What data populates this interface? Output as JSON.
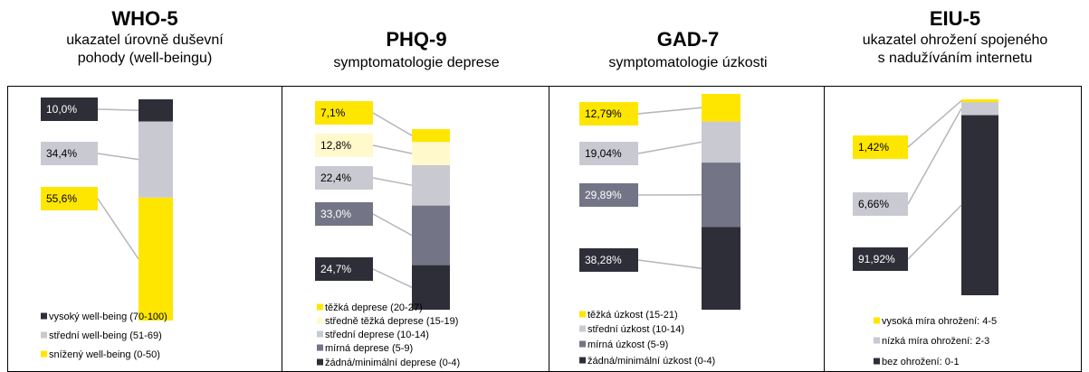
{
  "chart_data": [
    {
      "type": "bar",
      "stacked": true,
      "title": "WHO-5",
      "subtitle": [
        "ukazatel úrovně duševní",
        "pohody (well-beingu)"
      ],
      "series": [
        {
          "name": "vysoký well-being (70-100)",
          "color": "#2e2e38",
          "values": [
            10.0
          ],
          "value_labels": [
            "10,0%"
          ]
        },
        {
          "name": "střední well-being (51-69)",
          "color": "#c9c9d1",
          "values": [
            34.4
          ],
          "value_labels": [
            "34,4%"
          ]
        },
        {
          "name": "snížený well-being (0-50)",
          "color": "#ffe600",
          "values": [
            55.6
          ],
          "value_labels": [
            "55,6%"
          ]
        }
      ]
    },
    {
      "type": "bar",
      "stacked": true,
      "title": "PHQ-9",
      "subtitle": [
        "symptomatologie deprese"
      ],
      "series": [
        {
          "name": "těžká deprese (20-27)",
          "color": "#ffe600",
          "values": [
            7.1
          ],
          "value_labels": [
            "7,1%"
          ]
        },
        {
          "name": "středně těžká deprese (15-19)",
          "color": "#fff9cc",
          "values": [
            12.8
          ],
          "value_labels": [
            "12,8%"
          ]
        },
        {
          "name": "střední deprese (10-14)",
          "color": "#c9c9d1",
          "values": [
            22.4
          ],
          "value_labels": [
            "22,4%"
          ]
        },
        {
          "name": "mírná deprese (5-9)",
          "color": "#747487",
          "values": [
            33.0
          ],
          "value_labels": [
            "33,0%"
          ]
        },
        {
          "name": "žádná/minimální deprese (0-4)",
          "color": "#2e2e38",
          "values": [
            24.7
          ],
          "value_labels": [
            "24,7%"
          ]
        }
      ]
    },
    {
      "type": "bar",
      "stacked": true,
      "title": "GAD-7",
      "subtitle": [
        "symptomatologie úzkosti"
      ],
      "series": [
        {
          "name": "těžká úzkost (15-21)",
          "color": "#ffe600",
          "values": [
            12.79
          ],
          "value_labels": [
            "12,79%"
          ]
        },
        {
          "name": "střední úzkost (10-14)",
          "color": "#c9c9d1",
          "values": [
            19.04
          ],
          "value_labels": [
            "19,04%"
          ]
        },
        {
          "name": "mírná úzkost (5-9)",
          "color": "#747487",
          "values": [
            29.89
          ],
          "value_labels": [
            "29,89%"
          ]
        },
        {
          "name": "žádná/minimální úzkost (0-4)",
          "color": "#2e2e38",
          "values": [
            38.28
          ],
          "value_labels": [
            "38,28%"
          ]
        }
      ]
    },
    {
      "type": "bar",
      "stacked": true,
      "title": "EIU-5",
      "subtitle": [
        "ukazatel ohrožení spojeného",
        "s nadužíváním internetu"
      ],
      "series": [
        {
          "name": "vysoká míra ohrožení: 4-5",
          "color": "#ffe600",
          "values": [
            1.42
          ],
          "value_labels": [
            "1,42%"
          ]
        },
        {
          "name": "nízká míra ohrožení: 2-3",
          "color": "#c9c9d1",
          "values": [
            6.66
          ],
          "value_labels": [
            "6,66%"
          ]
        },
        {
          "name": "bez ohrožení: 0-1",
          "color": "#2e2e38",
          "values": [
            91.92
          ],
          "value_labels": [
            "91,92%"
          ]
        }
      ]
    }
  ]
}
